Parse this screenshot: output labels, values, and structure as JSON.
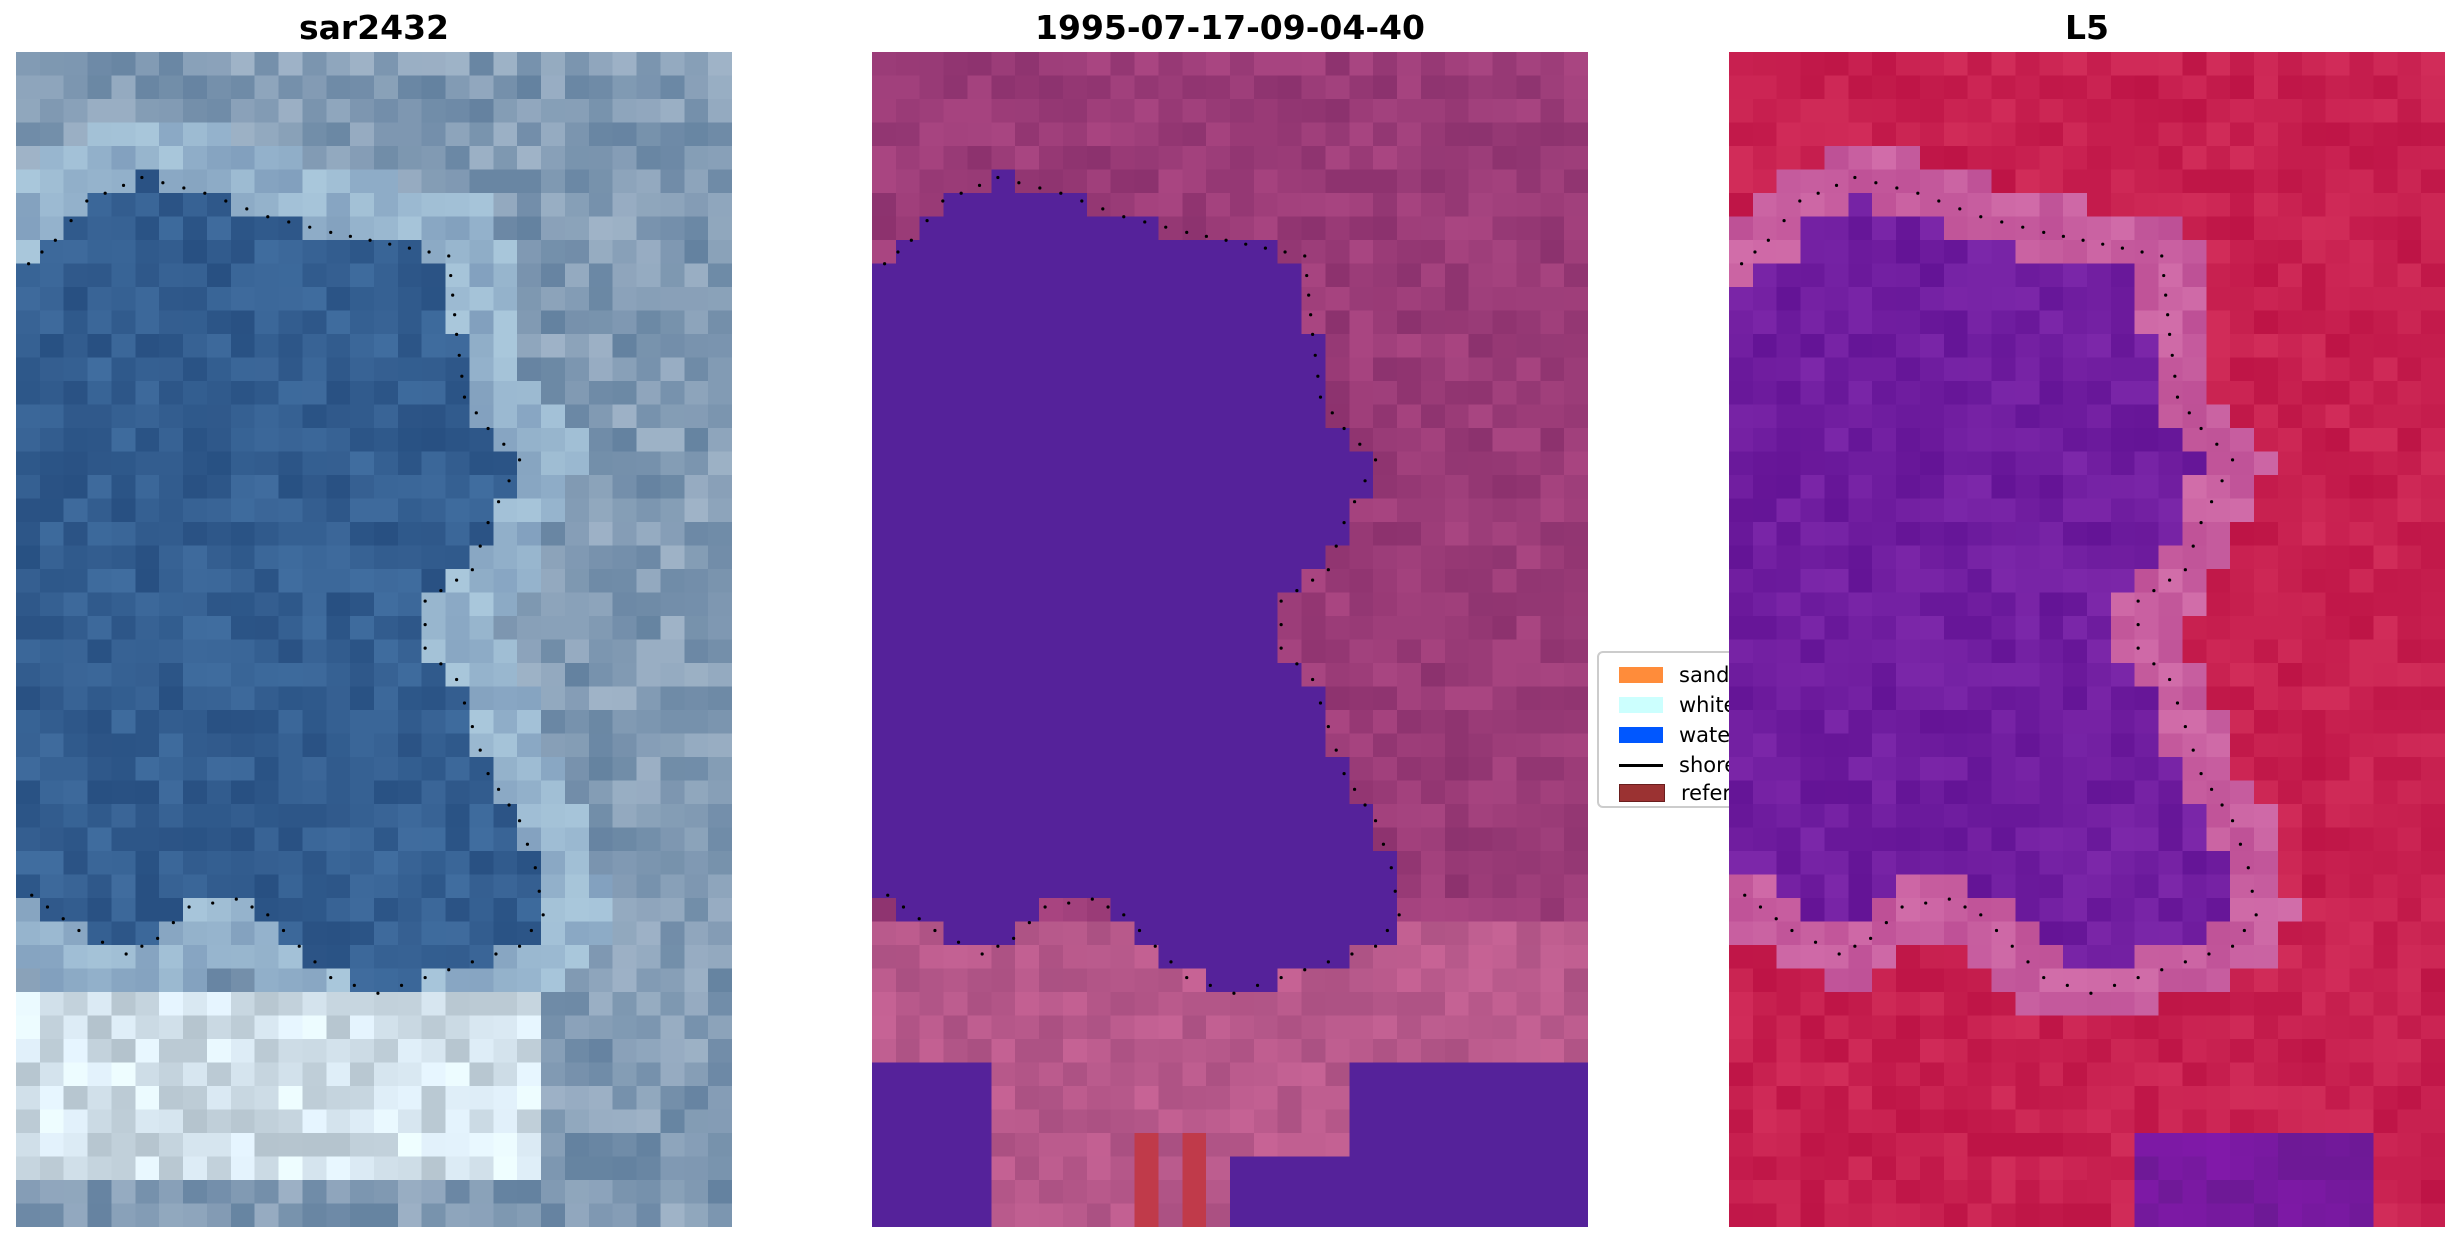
{
  "panels": [
    {
      "title": "sar2432"
    },
    {
      "title": "1995-07-17-09-04-40"
    },
    {
      "title": "L5"
    }
  ],
  "legend": {
    "items": [
      {
        "label": "sand",
        "color": "#ff8c3a"
      },
      {
        "label": "whitew",
        "color": "#ccfffe"
      },
      {
        "label": "water",
        "color": "#0057ff"
      },
      {
        "label": "shorel",
        "color": "#000000",
        "kind": "line"
      },
      {
        "label": "referer",
        "color": "#9b3232"
      }
    ]
  },
  "colors": {
    "water_class": "#55229a",
    "land_class": "#a04a88",
    "index_water": "#7020a0",
    "index_land": "#c01848"
  }
}
